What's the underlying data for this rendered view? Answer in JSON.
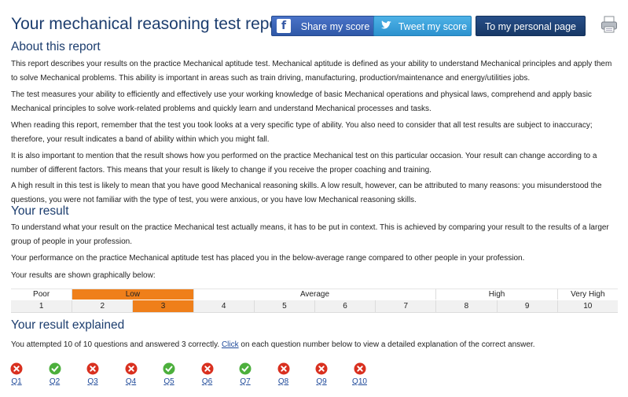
{
  "header": {
    "title": "Your mechanical reasoning test report",
    "share_label": "Share my score",
    "tweet_label": "Tweet my score",
    "personal_page_label": "To my personal page",
    "facebook_glyph": "f",
    "icons": [
      "facebook-icon",
      "twitter-bird-icon",
      "printer-icon"
    ]
  },
  "about": {
    "heading": "About this report",
    "p1": "This report describes your results on the practice Mechanical aptitude test. Mechanical aptitude is defined as your ability to understand Mechanical principles and apply them to solve Mechanical problems. This ability is important in areas such as train driving, manufacturing, production/maintenance and energy/utilities jobs.",
    "p2": "The test measures your ability to efficiently and effectively use your working knowledge of basic Mechanical operations and physical laws, comprehend and apply basic Mechanical principles to solve work-related problems and quickly learn and understand Mechanical processes and tasks.",
    "p3": "When reading this report, remember that the test you took looks at a very specific type of ability. You also need to consider that all test results are subject to inaccuracy; therefore, your result indicates a band of ability within which you might fall.",
    "p4": "It is also important to mention that the result shows how you performed on the practice Mechanical test on this particular occasion. Your result can change according to a number of different factors. This means that your result is likely to change if you receive the proper coaching and training.",
    "p5": "A high result in this test is likely to mean that you have good Mechanical reasoning skills. A low result, however, can be attributed to many reasons: you misunderstood the questions, you were not familiar with the type of test, you were anxious, or you have low Mechanical reasoning skills."
  },
  "result": {
    "heading": "Your result",
    "p1": "To understand what your result on the practice Mechanical test actually means, it has to be put in context. This is achieved by comparing your result to the results of a larger group of people in your profession.",
    "p2": "Your performance on the practice Mechanical aptitude test has placed you in the below-average range compared to other people in your profession.",
    "p3": "Your results are shown graphically below:",
    "bands": [
      {
        "label": "Poor",
        "span": 1,
        "highlighted": false
      },
      {
        "label": "Low",
        "span": 2,
        "highlighted": true
      },
      {
        "label": "Average",
        "span": 4,
        "highlighted": false
      },
      {
        "label": "High",
        "span": 2,
        "highlighted": false
      },
      {
        "label": "Very High",
        "span": 1,
        "highlighted": false
      }
    ],
    "scores": [
      "1",
      "2",
      "3",
      "4",
      "5",
      "6",
      "7",
      "8",
      "9",
      "10"
    ],
    "selected_score": "3",
    "highlight_color": "#ef7f1a"
  },
  "explained": {
    "heading": "Your result explained",
    "intro_before": "You attempted 10 of 10 questions and answered 3 correctly. ",
    "click_link": "Click",
    "intro_after": " on each question number below to view a detailed explanation of the correct answer.",
    "questions": [
      {
        "label": "Q1",
        "correct": false
      },
      {
        "label": "Q2",
        "correct": true
      },
      {
        "label": "Q3",
        "correct": false
      },
      {
        "label": "Q4",
        "correct": false
      },
      {
        "label": "Q5",
        "correct": true
      },
      {
        "label": "Q6",
        "correct": false
      },
      {
        "label": "Q7",
        "correct": true
      },
      {
        "label": "Q8",
        "correct": false
      },
      {
        "label": "Q9",
        "correct": false
      },
      {
        "label": "Q10",
        "correct": false
      }
    ],
    "correct_color": "#4caf3c",
    "wrong_color": "#d9301f"
  }
}
